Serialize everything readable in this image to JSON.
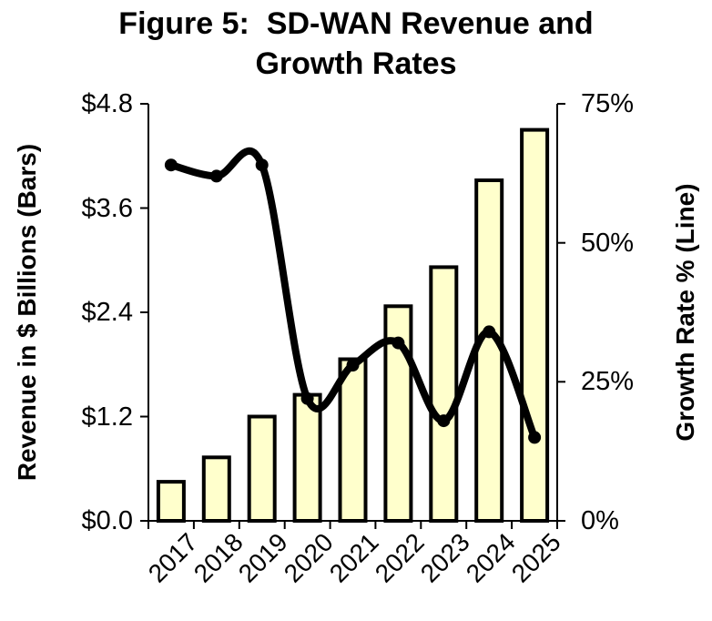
{
  "title": {
    "line1": "Figure 5:  SD-WAN Revenue and",
    "line2": "Growth Rates"
  },
  "chart_data": {
    "type": "bar+line",
    "title": "Figure 5:  SD-WAN Revenue and Growth Rates",
    "categories": [
      "2017",
      "2018",
      "2019",
      "2020",
      "2021",
      "2022",
      "2023",
      "2024",
      "2025"
    ],
    "series": [
      {
        "name": "Revenue in $ Billions",
        "type": "bar",
        "axis": "left",
        "values": [
          0.45,
          0.73,
          1.2,
          1.45,
          1.86,
          2.47,
          2.92,
          3.92,
          4.5
        ]
      },
      {
        "name": "Growth Rate %",
        "type": "line",
        "axis": "right",
        "values": [
          64,
          62,
          64,
          22,
          28,
          32,
          18,
          34,
          15
        ]
      }
    ],
    "left_axis": {
      "label": "Revenue in $ Billions (Bars)",
      "min": 0,
      "max": 4.8,
      "tick_values": [
        0,
        1.2,
        2.4,
        3.6,
        4.8
      ],
      "tick_labels": [
        "$0.0",
        "$1.2",
        "$2.4",
        "$3.6",
        "$4.8"
      ]
    },
    "right_axis": {
      "label": "Growth Rate % (Line)",
      "min": 0,
      "max": 75,
      "tick_values": [
        0,
        25,
        50,
        75
      ],
      "tick_labels": [
        "0%",
        "25%",
        "50%",
        "75%"
      ]
    },
    "x_axis": {
      "label_rotation_deg": -45
    },
    "grid": false,
    "legend": "none",
    "line_smoothed": true
  },
  "colors": {
    "bar_fill": "#FFFFCC",
    "bar_border": "#000000",
    "line": "#000000",
    "axis": "#000000",
    "text": "#000000",
    "background": "#FFFFFF"
  }
}
